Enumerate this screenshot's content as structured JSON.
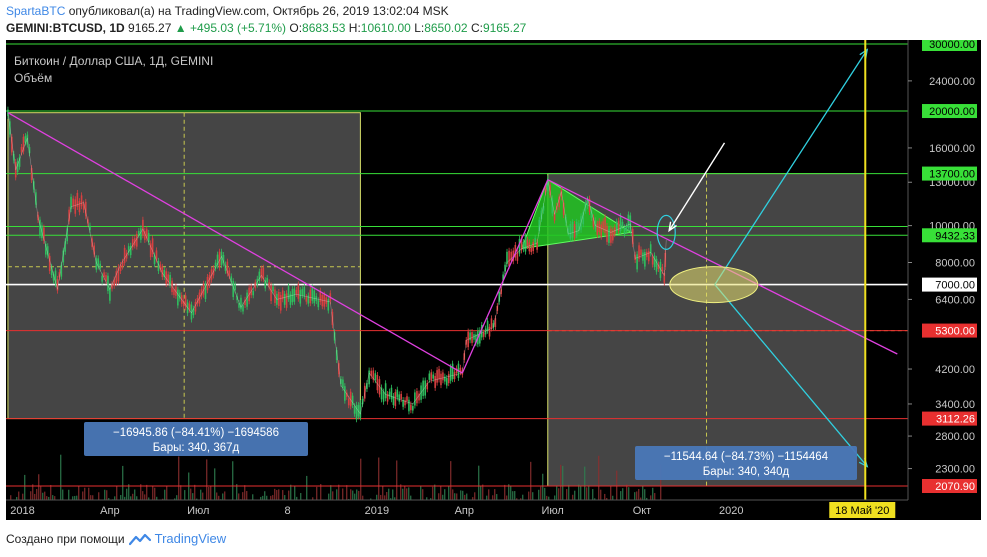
{
  "header": {
    "author": "SpartaBTC",
    "published_text": "опубликовал(а) на TradingView.com, Октябрь 26, 2019 13:02:04 MSK",
    "symbol": "GEMINI:BTCUSD, 1D",
    "price": "9165.27",
    "change": "▲ +495.03 (+5.71%)",
    "ohlc": {
      "o_label": "O:",
      "o": "8683.53",
      "h_label": "H:",
      "h": "10610.00",
      "l_label": "L:",
      "l": "8650.02",
      "c_label": "C:",
      "c": "9165.27"
    }
  },
  "legend": {
    "title": "Биткоин / Доллар США, 1Д, GEMINI",
    "volume": "Объём"
  },
  "footer": {
    "made_with": "Создано при помощи",
    "brand": "TradingView",
    "logo_icon": "tradingview-logo-icon"
  },
  "chart_data": {
    "type": "candlestick",
    "x_range": [
      "2017-12-15",
      "2020-07-01"
    ],
    "y_range": [
      2070,
      30000
    ],
    "log_scale": true,
    "x_ticks": [
      {
        "label": "2018",
        "date": "2018-01-01"
      },
      {
        "label": "Апр",
        "date": "2018-04-01"
      },
      {
        "label": "Июл",
        "date": "2018-07-01"
      },
      {
        "label": "8",
        "date": "2018-10-01"
      },
      {
        "label": "2019",
        "date": "2019-01-01"
      },
      {
        "label": "Апр",
        "date": "2019-04-01"
      },
      {
        "label": "Июл",
        "date": "2019-07-01"
      },
      {
        "label": "Окт",
        "date": "2019-10-01"
      },
      {
        "label": "2020",
        "date": "2020-01-01"
      }
    ],
    "y_ticks": [
      "24000.00",
      "16000.00",
      "13000.00",
      "10000.00",
      "8000.00",
      "6400.00",
      "4200.00",
      "3400.00",
      "2800.00",
      "2300.00"
    ],
    "price_levels": [
      {
        "label": "30000.00",
        "value": 30000,
        "color": "#38e038"
      },
      {
        "label": "20000.00",
        "value": 20000,
        "color": "#38e038"
      },
      {
        "label": "13700.00",
        "value": 13700,
        "color": "#38e038"
      },
      {
        "label": "9432.33",
        "value": 9432,
        "color": "#38e038"
      },
      {
        "label": "7000.00",
        "value": 7000,
        "color": "#ffffff"
      },
      {
        "label": "5300.00",
        "value": 5300,
        "color": "#e83030"
      },
      {
        "label": "3112.26",
        "value": 3112,
        "color": "#e83030"
      },
      {
        "label": "2070.90",
        "value": 2070,
        "color": "#e83030"
      }
    ],
    "green_lines": [
      20000,
      13700,
      9950,
      9432
    ],
    "date_badge": "18 Май '20",
    "date_badge_date": "2020-05-18",
    "price_path": [
      [
        "2017-12-17",
        19800
      ],
      [
        "2017-12-25",
        14000
      ],
      [
        "2018-01-06",
        17000
      ],
      [
        "2018-01-17",
        10500
      ],
      [
        "2018-02-06",
        6800
      ],
      [
        "2018-02-20",
        11200
      ],
      [
        "2018-03-05",
        11500
      ],
      [
        "2018-03-18",
        8000
      ],
      [
        "2018-04-01",
        6800
      ],
      [
        "2018-04-12",
        7900
      ],
      [
        "2018-05-05",
        9800
      ],
      [
        "2018-05-25",
        7500
      ],
      [
        "2018-06-24",
        5900
      ],
      [
        "2018-07-25",
        8300
      ],
      [
        "2018-08-14",
        6100
      ],
      [
        "2018-09-04",
        7400
      ],
      [
        "2018-09-20",
        6400
      ],
      [
        "2018-10-10",
        6600
      ],
      [
        "2018-11-14",
        6300
      ],
      [
        "2018-11-25",
        3800
      ],
      [
        "2018-12-15",
        3200
      ],
      [
        "2018-12-24",
        4100
      ],
      [
        "2019-01-10",
        3600
      ],
      [
        "2019-02-07",
        3400
      ],
      [
        "2019-02-24",
        3900
      ],
      [
        "2019-03-30",
        4100
      ],
      [
        "2019-04-03",
        5000
      ],
      [
        "2019-05-01",
        5400
      ],
      [
        "2019-05-15",
        8000
      ],
      [
        "2019-05-30",
        8700
      ],
      [
        "2019-06-15",
        9000
      ],
      [
        "2019-06-26",
        13200
      ],
      [
        "2019-07-03",
        10700
      ],
      [
        "2019-07-10",
        12300
      ],
      [
        "2019-07-17",
        9500
      ],
      [
        "2019-07-28",
        9700
      ],
      [
        "2019-08-06",
        11800
      ],
      [
        "2019-08-14",
        10000
      ],
      [
        "2019-08-30",
        9600
      ],
      [
        "2019-09-19",
        10100
      ],
      [
        "2019-09-24",
        8200
      ],
      [
        "2019-10-10",
        8500
      ],
      [
        "2019-10-24",
        7400
      ],
      [
        "2019-10-26",
        9165
      ]
    ],
    "boxes": [
      {
        "from": "2017-12-17",
        "to": "2018-12-15",
        "high": 19800,
        "low": 3112
      },
      {
        "from": "2019-06-26",
        "to": "2020-05-18",
        "high": 13700,
        "low": 2070
      }
    ],
    "triangle": {
      "top": [
        "2019-06-26",
        13200
      ],
      "bottom": [
        "2019-05-30",
        8700
      ],
      "apex": [
        "2019-09-20",
        9600
      ]
    },
    "trendlines": [
      {
        "from": [
          "2017-12-17",
          19800
        ],
        "to": [
          "2019-03-30",
          4100
        ],
        "color": "#e040e0"
      },
      {
        "from": [
          "2019-03-30",
          4100
        ],
        "to": [
          "2019-06-26",
          13200
        ],
        "color": "#e040e0"
      },
      {
        "from": [
          "2019-06-26",
          13200
        ],
        "to": [
          "2020-06-20",
          4600
        ],
        "color": "#e040e0"
      },
      {
        "from": [
          "2019-12-15",
          7000
        ],
        "to": [
          "2020-05-20",
          29000
        ],
        "color": "#30d0e0"
      },
      {
        "from": [
          "2019-12-15",
          7000
        ],
        "to": [
          "2020-05-20",
          2330
        ],
        "color": "#30d0e0"
      }
    ],
    "measure_labels": [
      {
        "line1": "−16945.86 (−84.41%) −1694586",
        "line2": "Бары: 340, 367д"
      },
      {
        "line1": "−11544.64 (−84.73%) −1154464",
        "line2": "Бары: 340, 340д"
      }
    ]
  }
}
